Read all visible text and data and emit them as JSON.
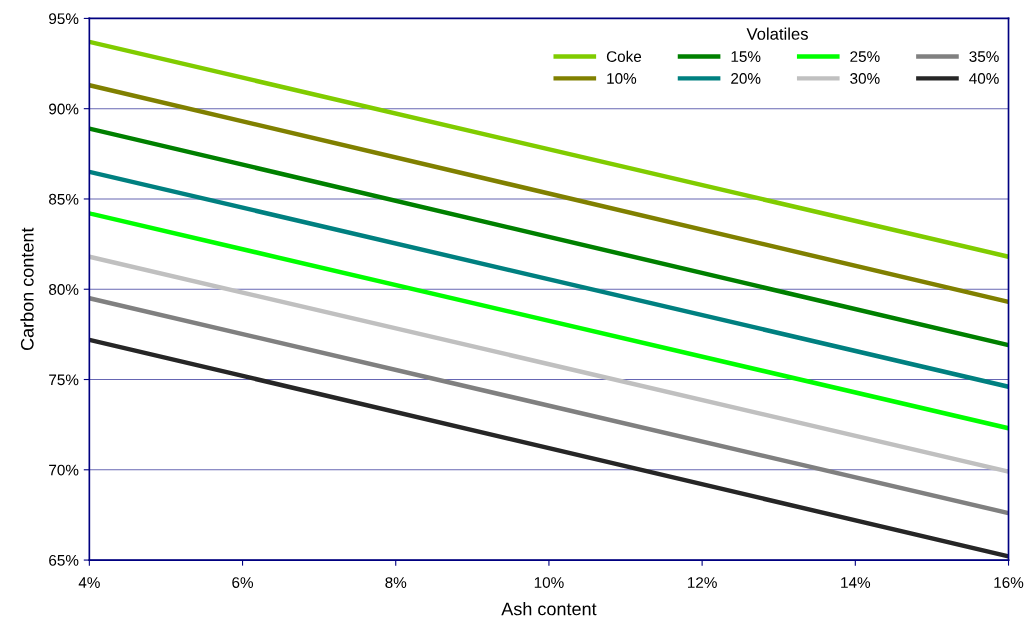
{
  "chart_data": {
    "type": "line",
    "xlabel": "Ash content",
    "ylabel": "Carbon content",
    "legend_title": "Volatiles",
    "legend": "top right",
    "grid": "y",
    "marker": "none",
    "line_style": "solid",
    "xlim": [
      4,
      16
    ],
    "ylim": [
      65,
      95
    ],
    "xticks": [
      {
        "value": 4,
        "label": "4%"
      },
      {
        "value": 6,
        "label": "6%"
      },
      {
        "value": 8,
        "label": "8%"
      },
      {
        "value": 10,
        "label": "10%"
      },
      {
        "value": 12,
        "label": "12%"
      },
      {
        "value": 14,
        "label": "14%"
      },
      {
        "value": 16,
        "label": "16%"
      }
    ],
    "yticks": [
      {
        "value": 65,
        "label": "65%"
      },
      {
        "value": 70,
        "label": "70%"
      },
      {
        "value": 75,
        "label": "75%"
      },
      {
        "value": 80,
        "label": "80%"
      },
      {
        "value": 85,
        "label": "85%"
      },
      {
        "value": 90,
        "label": "90%"
      },
      {
        "value": 95,
        "label": "95%"
      }
    ],
    "x": [
      4,
      16
    ],
    "series": [
      {
        "name": "Coke",
        "color": "#80cc00",
        "values": [
          93.7,
          81.8
        ]
      },
      {
        "name": "10%",
        "color": "#808000",
        "values": [
          91.3,
          79.3
        ]
      },
      {
        "name": "15%",
        "color": "#008000",
        "values": [
          88.9,
          76.9
        ]
      },
      {
        "name": "20%",
        "color": "#008080",
        "values": [
          86.5,
          74.6
        ]
      },
      {
        "name": "25%",
        "color": "#00ff00",
        "values": [
          84.2,
          72.3
        ]
      },
      {
        "name": "30%",
        "color": "#c0c0c0",
        "values": [
          81.8,
          69.9
        ]
      },
      {
        "name": "35%",
        "color": "#808080",
        "values": [
          79.5,
          67.6
        ]
      },
      {
        "name": "40%",
        "color": "#262626",
        "values": [
          77.2,
          65.2
        ]
      }
    ]
  }
}
